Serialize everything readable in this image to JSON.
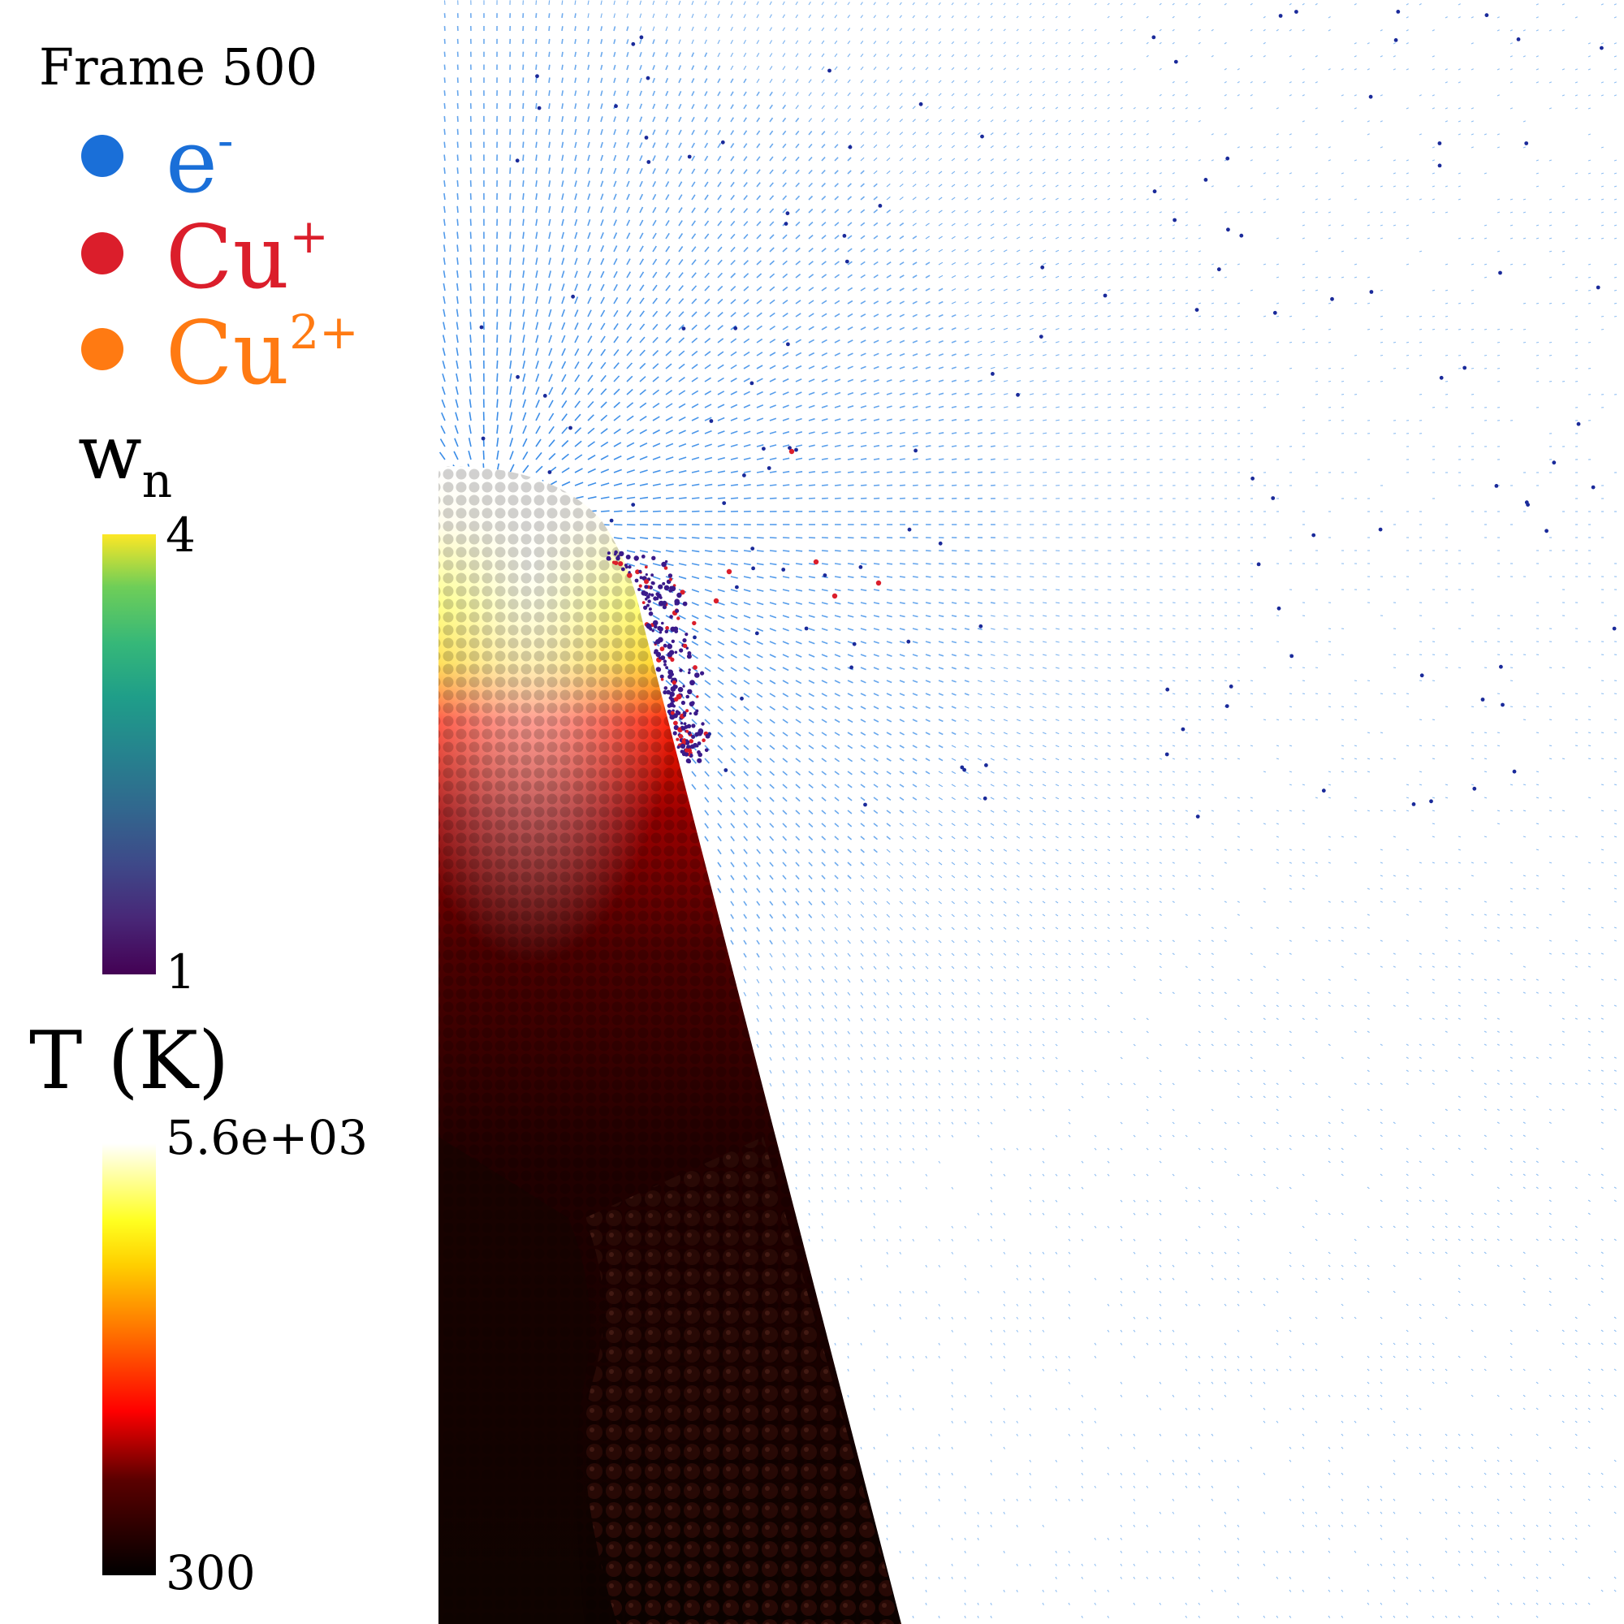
{
  "frame_label": "Frame 500",
  "legend": {
    "species": [
      {
        "base": "e",
        "sup": "-",
        "color": "#1a6fd8"
      },
      {
        "base": "Cu",
        "sup": "+",
        "color": "#db1e2b"
      },
      {
        "base": "Cu",
        "sup": "2+",
        "color": "#ff7a12"
      }
    ]
  },
  "colorbar_wn": {
    "title_base": "w",
    "title_sub": "n",
    "max_label": "4",
    "min_label": "1",
    "colormap": "viridis"
  },
  "colorbar_T": {
    "title": "T (K)",
    "max_label": "5.6e+03",
    "min_label": "300",
    "colormap": "hot"
  },
  "scene": {
    "emitter_color_scale": "temperature (hot)",
    "field_arrow_color": "#2f86e6",
    "ion_color": "#3a1a8a",
    "electron_color": "#1a2a9a"
  }
}
